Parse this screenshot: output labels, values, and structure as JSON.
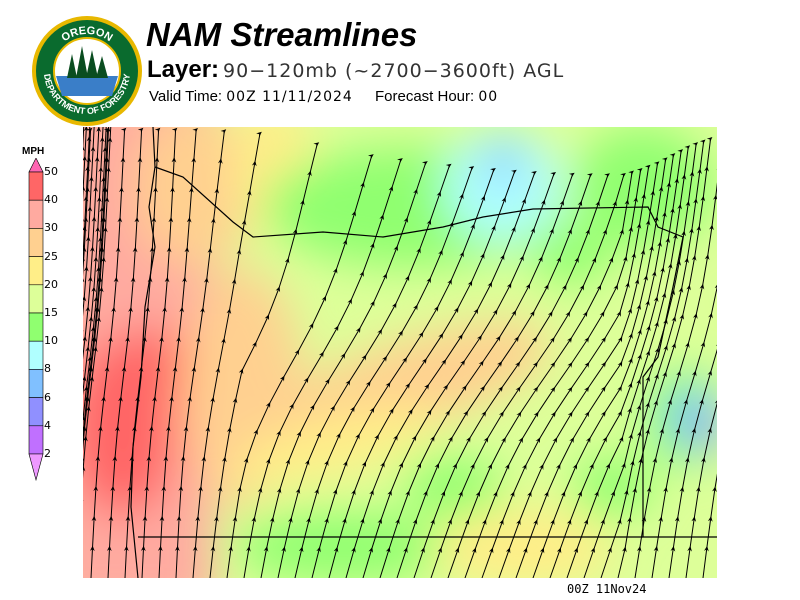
{
  "header": {
    "title": "NAM Streamlines",
    "layer_label": "Layer:",
    "layer_value": "90−120mb (~2700−3600ft) AGL",
    "valid_label": "Valid Time:",
    "valid_value": "00Z 11/11/2024",
    "forecast_label": "Forecast Hour:",
    "forecast_value": "00"
  },
  "logo": {
    "top_text": "OREGON",
    "bottom_text": "DEPARTMENT OF FORESTRY"
  },
  "legend": {
    "units": "MPH",
    "ticks": [
      "50",
      "40",
      "30",
      "25",
      "20",
      "15",
      "10",
      "8",
      "6",
      "4",
      "2"
    ],
    "colors": [
      "#ff66b3",
      "#ff6666",
      "#ffaaa0",
      "#ffd090",
      "#ffee88",
      "#ddff99",
      "#90ff70",
      "#b0ffff",
      "#80c0ff",
      "#9090ff",
      "#c070ff",
      "#ee99ff"
    ]
  },
  "map": {
    "timestamp": "00Z 11Nov24"
  }
}
